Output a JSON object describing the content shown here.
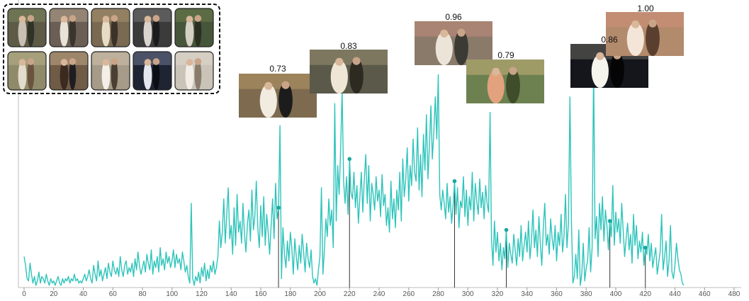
{
  "chart_data": {
    "type": "line",
    "title": "",
    "xlabel": "",
    "ylabel": "",
    "xlim": [
      0,
      480
    ],
    "ylim": [
      0,
      1
    ],
    "x_ticks": [
      0,
      20,
      40,
      60,
      80,
      100,
      120,
      140,
      160,
      180,
      200,
      220,
      240,
      260,
      280,
      300,
      320,
      340,
      360,
      380,
      400,
      420,
      440,
      460,
      480
    ],
    "grid": false,
    "legend": "none",
    "colors": {
      "line": "#2ec4bb",
      "peak_marker": "#1aa79f",
      "peak_line": "#333333",
      "gallery_border": "#111111"
    },
    "peaks": [
      {
        "x": 172,
        "label": "0.73"
      },
      {
        "x": 220,
        "label": "0.83"
      },
      {
        "x": 291,
        "label": "0.96"
      },
      {
        "x": 326,
        "label": "0.79"
      },
      {
        "x": 396,
        "label": "0.86"
      },
      {
        "x": 420,
        "label": "1.00"
      }
    ],
    "series": [
      {
        "y": [
          0.14,
          0.1,
          0.04,
          0.03,
          0.11,
          0.06,
          0.02,
          0.05,
          0.01,
          0.03,
          0.07,
          0.02,
          0.05,
          0.04,
          0.02,
          0.06,
          0.03,
          0.01,
          0.04,
          0.02,
          0.03,
          0.01,
          0.03,
          0.05,
          0.02,
          0.01,
          0.04,
          0.02,
          0.04,
          0.03,
          0.05,
          0.02,
          0.04,
          0.03,
          0.06,
          0.03,
          0.04,
          0.02,
          0.03,
          0.02,
          0.04,
          0.06,
          0.03,
          0.05,
          0.08,
          0.04,
          0.02,
          0.1,
          0.06,
          0.03,
          0.12,
          0.05,
          0.08,
          0.03,
          0.06,
          0.09,
          0.04,
          0.11,
          0.07,
          0.05,
          0.12,
          0.08,
          0.06,
          0.09,
          0.05,
          0.14,
          0.08,
          0.05,
          0.1,
          0.12,
          0.06,
          0.09,
          0.07,
          0.11,
          0.05,
          0.13,
          0.08,
          0.16,
          0.1,
          0.06,
          0.09,
          0.12,
          0.07,
          0.15,
          0.11,
          0.08,
          0.17,
          0.06,
          0.12,
          0.09,
          0.14,
          0.07,
          0.18,
          0.1,
          0.13,
          0.08,
          0.16,
          0.11,
          0.14,
          0.09,
          0.12,
          0.17,
          0.09,
          0.15,
          0.11,
          0.13,
          0.08,
          0.16,
          0.12,
          0.07,
          0.1,
          0.05,
          0.02,
          0.38,
          0.04,
          0.01,
          0.05,
          0.03,
          0.07,
          0.02,
          0.09,
          0.05,
          0.11,
          0.03,
          0.08,
          0.04,
          0.1,
          0.07,
          0.12,
          0.06,
          0.09,
          0.14,
          0.3,
          0.18,
          0.25,
          0.4,
          0.2,
          0.33,
          0.45,
          0.22,
          0.28,
          0.15,
          0.36,
          0.19,
          0.42,
          0.25,
          0.3,
          0.2,
          0.38,
          0.24,
          0.16,
          0.29,
          0.35,
          0.21,
          0.44,
          0.26,
          0.32,
          0.48,
          0.27,
          0.18,
          0.37,
          0.23,
          0.41,
          0.19,
          0.33,
          0.25,
          0.15,
          0.28,
          0.4,
          0.22,
          0.47,
          0.31,
          0.36,
          0.73,
          0.04,
          0.27,
          0.15,
          0.09,
          0.21,
          0.12,
          0.25,
          0.18,
          0.06,
          0.22,
          0.14,
          0.08,
          0.19,
          0.11,
          0.24,
          0.16,
          0.07,
          0.2,
          0.13,
          0.09,
          0.17,
          0.05,
          0.02,
          0.04,
          0.01,
          0.08,
          0.14,
          0.45,
          0.06,
          0.17,
          0.31,
          0.23,
          0.4,
          0.28,
          0.35,
          0.18,
          0.83,
          0.3,
          0.55,
          0.42,
          0.62,
          0.89,
          0.48,
          0.38,
          0.5,
          0.33,
          0.58,
          0.43,
          0.4,
          0.52,
          0.36,
          0.46,
          0.29,
          0.41,
          0.52,
          0.34,
          0.49,
          0.6,
          0.38,
          0.55,
          0.3,
          0.47,
          0.42,
          0.35,
          0.5,
          0.39,
          0.44,
          0.32,
          0.51,
          0.37,
          0.42,
          0.28,
          0.36,
          0.25,
          0.48,
          0.31,
          0.4,
          0.27,
          0.44,
          0.35,
          0.52,
          0.3,
          0.58,
          0.41,
          0.49,
          0.63,
          0.39,
          0.55,
          0.46,
          0.67,
          0.52,
          0.48,
          0.72,
          0.44,
          0.6,
          0.41,
          0.69,
          0.53,
          0.78,
          0.49,
          0.64,
          0.82,
          0.58,
          0.7,
          0.86,
          0.67,
          0.96,
          0.42,
          0.35,
          0.44,
          0.38,
          0.31,
          0.47,
          0.34,
          0.41,
          0.29,
          0.37,
          0.48,
          0.33,
          0.45,
          0.27,
          0.39,
          0.36,
          0.5,
          0.32,
          0.44,
          0.28,
          0.41,
          0.35,
          0.52,
          0.3,
          0.47,
          0.39,
          0.33,
          0.49,
          0.36,
          0.43,
          0.31,
          0.46,
          0.38,
          0.34,
          0.79,
          0.22,
          0.1,
          0.3,
          0.16,
          0.25,
          0.12,
          0.2,
          0.08,
          0.18,
          0.13,
          0.26,
          0.09,
          0.2,
          0.15,
          0.11,
          0.24,
          0.17,
          0.1,
          0.22,
          0.14,
          0.28,
          0.12,
          0.19,
          0.25,
          0.16,
          0.3,
          0.13,
          0.21,
          0.35,
          0.18,
          0.26,
          0.14,
          0.32,
          0.2,
          0.1,
          0.27,
          0.38,
          0.19,
          0.24,
          0.15,
          0.31,
          0.22,
          0.17,
          0.28,
          0.12,
          0.25,
          0.19,
          0.33,
          0.16,
          0.23,
          0.42,
          0.18,
          0.29,
          0.86,
          0.3,
          0.02,
          0.05,
          0.15,
          0.04,
          0.26,
          0.01,
          0.06,
          0.2,
          0.03,
          0.09,
          0.12,
          0.27,
          0.07,
          0.18,
          1.0,
          0.22,
          0.32,
          0.14,
          0.38,
          0.26,
          0.41,
          0.21,
          0.35,
          0.28,
          0.17,
          0.3,
          0.23,
          0.46,
          0.19,
          0.34,
          0.25,
          0.31,
          0.2,
          0.38,
          0.26,
          0.14,
          0.22,
          0.29,
          0.17,
          0.24,
          0.11,
          0.33,
          0.19,
          0.28,
          0.13,
          0.21,
          0.16,
          0.25,
          0.1,
          0.18,
          0.15,
          0.24,
          0.12,
          0.2,
          0.09,
          0.14,
          0.18,
          0.06,
          0.11,
          0.16,
          0.33,
          0.08,
          0.14,
          0.21,
          0.05,
          0.12,
          0.28,
          0.07,
          0.04,
          0.1,
          0.2,
          0.13,
          0.08,
          0.06,
          0.02,
          0.01
        ]
      }
    ]
  },
  "gallery": {
    "items": [
      {
        "name": "thumb-bouquet-couple",
        "bg": "#5d5a46",
        "a": "#c9c0b5",
        "b": "#2e3327",
        "c": "#7c8b5e"
      },
      {
        "name": "thumb-confetti-walk",
        "bg": "#6b5f55",
        "a": "#e9e2d6",
        "b": "#3a342e",
        "c": "#b5a38c"
      },
      {
        "name": "thumb-hug-couple",
        "bg": "#7a6a52",
        "a": "#e7ddc6",
        "b": "#3b3328",
        "c": "#a89170"
      },
      {
        "name": "thumb-dark-kiss",
        "bg": "#3b3b3b",
        "a": "#d9d4cf",
        "b": "#1b1b1b",
        "c": "#777"
      },
      {
        "name": "thumb-greenery-couple",
        "bg": "#46563a",
        "a": "#d5d0c4",
        "b": "#2a2f22",
        "c": "#6e7f4d"
      },
      {
        "name": "thumb-outdoor-couple",
        "bg": "#8f8a6a",
        "a": "#e3dccd",
        "b": "#6a5440",
        "c": "#b8b089"
      },
      {
        "name": "thumb-suit-couple",
        "bg": "#6f5b46",
        "a": "#3b2a20",
        "b": "#1e1e22",
        "c": "#c5a988"
      },
      {
        "name": "thumb-gown-dance",
        "bg": "#a69a88",
        "a": "#f3efe8",
        "b": "#4b3f33",
        "c": "#cfc2ad"
      },
      {
        "name": "thumb-night-sparkle",
        "bg": "#1f2433",
        "a": "#e5e7ef",
        "b": "#0c0e16",
        "c": "#6f7893"
      },
      {
        "name": "thumb-soft-kiss",
        "bg": "#c9c3b8",
        "a": "#f1ece4",
        "b": "#8a7b6c",
        "c": "#ded7cc"
      }
    ]
  },
  "peak_images": [
    {
      "name": "peak-image-vows",
      "bg": "#7d6a4f",
      "a": "#f1ebe0",
      "b": "#1c1c1c",
      "c": "#b69866"
    },
    {
      "name": "peak-image-bride-smile",
      "bg": "#5b5a4a",
      "a": "#efe6d6",
      "b": "#2d2a22",
      "c": "#9a8f73"
    },
    {
      "name": "peak-image-aisle",
      "bg": "#8a7a6a",
      "a": "#ece4d9",
      "b": "#3c3a35",
      "c": "#c28a7a"
    },
    {
      "name": "peak-image-bridesmaids",
      "bg": "#6d8150",
      "a": "#e2a27e",
      "b": "#3f4d2b",
      "c": "#c9b07a"
    },
    {
      "name": "peak-image-sparkler-kiss",
      "bg": "#15161b",
      "a": "#f5f5ee",
      "b": "#050506",
      "c": "#6a6a62"
    },
    {
      "name": "peak-image-ceremony-arch",
      "bg": "#b28a6c",
      "a": "#f3e6d8",
      "b": "#5a3f2e",
      "c": "#cf8f7a"
    }
  ]
}
